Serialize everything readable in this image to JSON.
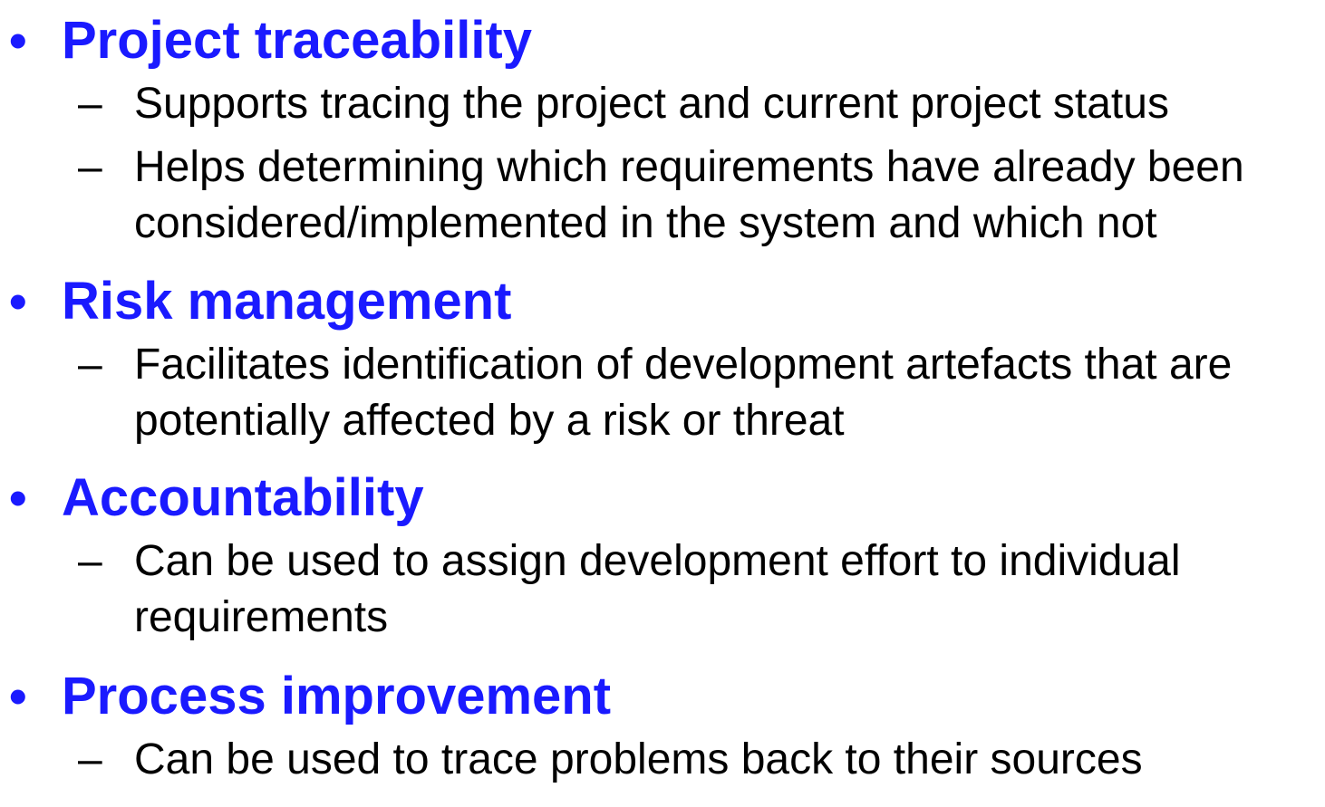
{
  "bullet_symbol": "•",
  "dash_symbol": "–",
  "colors": {
    "heading": "#1a1aff",
    "body": "#000000",
    "background": "#ffffff"
  },
  "topics": [
    {
      "heading": "Project traceability",
      "points": [
        "Supports tracing the project and current project status",
        "Helps determining which requirements have already been considered/implemented in the system and which not"
      ]
    },
    {
      "heading": "Risk management",
      "points": [
        "Facilitates identification of development artefacts that are potentially affected by a risk or threat"
      ]
    },
    {
      "heading": "Accountability",
      "points": [
        "Can be used to assign development effort to individual requirements"
      ]
    },
    {
      "heading": "Process improvement",
      "points": [
        "Can be used to trace problems back to their sources"
      ]
    }
  ]
}
